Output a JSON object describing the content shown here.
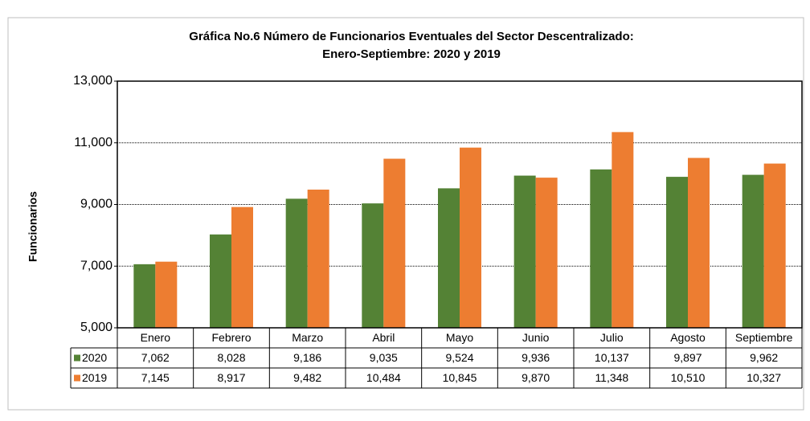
{
  "chart_data": {
    "type": "bar",
    "title": [
      "Gráfica No.6 Número de Funcionarios Eventuales del Sector Descentralizado:",
      "Enero-Septiembre: 2020 y 2019"
    ],
    "y_label": "Funcionarios",
    "categories": [
      "Enero",
      "Febrero",
      "Marzo",
      "Abril",
      "Mayo",
      "Junio",
      "Julio",
      "Agosto",
      "Septiembre"
    ],
    "series": [
      {
        "name": "2020",
        "color": "#548235",
        "values": [
          7062,
          8028,
          9186,
          9035,
          9524,
          9936,
          10137,
          9897,
          9962
        ],
        "value_labels": [
          "7,062",
          "8,028",
          "9,186",
          "9,035",
          "9,524",
          "9,936",
          "10,137",
          "9,897",
          "9,962"
        ]
      },
      {
        "name": "2019",
        "color": "#ed7d31",
        "values": [
          7145,
          8917,
          9482,
          10484,
          10845,
          9870,
          11348,
          10510,
          10327
        ],
        "value_labels": [
          "7,145",
          "8,917",
          "9,482",
          "10,484",
          "10,845",
          "9,870",
          "11,348",
          "10,510",
          "10,327"
        ]
      }
    ],
    "ylim": [
      5000,
      13000
    ],
    "yticks": [
      {
        "value": 5000,
        "label": "5,000"
      },
      {
        "value": 7000,
        "label": "7,000"
      },
      {
        "value": 9000,
        "label": "9,000"
      },
      {
        "value": 11000,
        "label": "11,000"
      },
      {
        "value": 13000,
        "label": "13,000"
      }
    ],
    "grid": true
  }
}
